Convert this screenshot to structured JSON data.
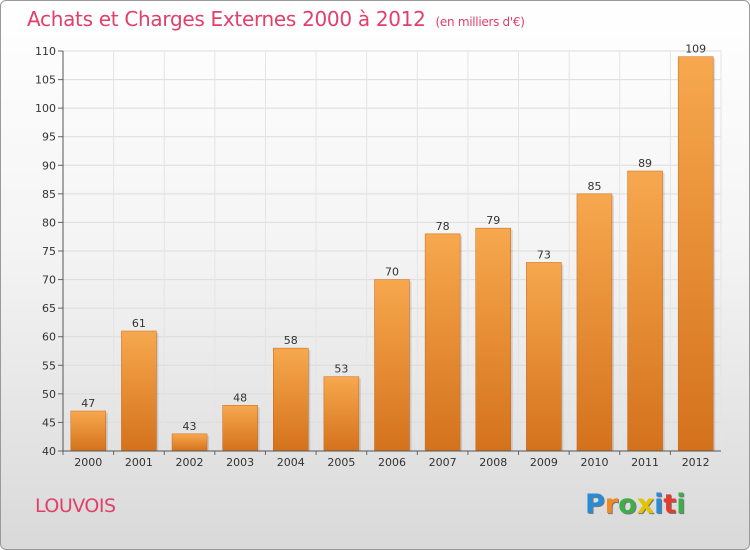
{
  "header": {
    "title": "Achats et Charges Externes 2000 à 2012",
    "subtitle": "(en milliers d'€)"
  },
  "footer": {
    "location": "LOUVOIS",
    "logo_letters": [
      "P",
      "r",
      "o",
      "x",
      "i",
      "t",
      "i"
    ],
    "logo_colors": [
      "#2a8bd4",
      "#f08a24",
      "#3fae49",
      "#e3c400",
      "#2a8bd4",
      "#e23a2e",
      "#3fae49"
    ]
  },
  "chart_data": {
    "type": "bar",
    "categories": [
      "2000",
      "2001",
      "2002",
      "2003",
      "2004",
      "2005",
      "2006",
      "2007",
      "2008",
      "2009",
      "2010",
      "2011",
      "2012"
    ],
    "values": [
      47,
      61,
      43,
      48,
      58,
      53,
      70,
      78,
      79,
      73,
      85,
      89,
      109
    ],
    "title": "Achats et Charges Externes 2000 à 2012",
    "xlabel": "",
    "ylabel": "",
    "ylim": [
      40,
      110
    ],
    "yticks": [
      40,
      45,
      50,
      55,
      60,
      65,
      70,
      75,
      80,
      85,
      90,
      95,
      100,
      105,
      110
    ],
    "grid": true,
    "bar_color": "#f0943c",
    "data_labels": true
  }
}
